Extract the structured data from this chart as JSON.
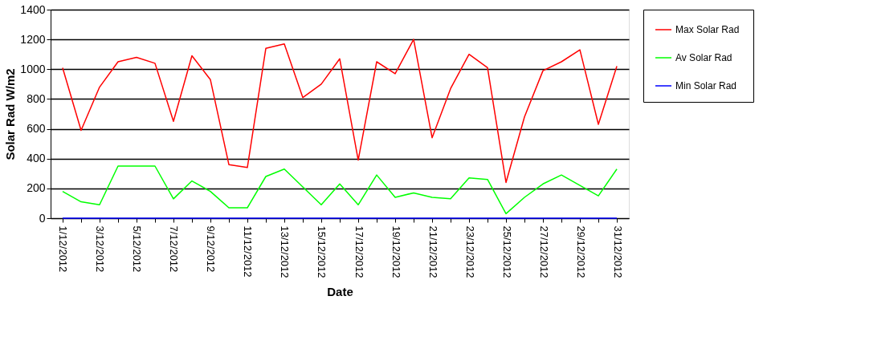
{
  "chart_data": {
    "type": "line",
    "xlabel": "Date",
    "ylabel": "Solar Rad W/m2",
    "categories": [
      "1/12/2012",
      null,
      "3/12/2012",
      null,
      "5/12/2012",
      null,
      "7/12/2012",
      null,
      "9/12/2012",
      null,
      "11/12/2012",
      null,
      "13/12/2012",
      null,
      "15/12/2012",
      null,
      "17/12/2012",
      null,
      "19/12/2012",
      null,
      "21/12/2012",
      null,
      "23/12/2012",
      null,
      "25/12/2012",
      null,
      "27/12/2012",
      null,
      "29/12/2012",
      null,
      "31/12/2012"
    ],
    "series": [
      {
        "name": "Max Solar  Rad",
        "color": "#ff0000",
        "values": [
          1010,
          590,
          880,
          1050,
          1080,
          1040,
          650,
          1090,
          930,
          360,
          340,
          1140,
          1170,
          810,
          900,
          1070,
          390,
          1050,
          970,
          1200,
          540,
          870,
          1100,
          1010,
          240,
          680,
          990,
          1050,
          1130,
          630,
          1020
        ]
      },
      {
        "name": "Av Solar  Rad",
        "color": "#00ff00",
        "values": [
          180,
          110,
          90,
          350,
          350,
          350,
          130,
          250,
          180,
          70,
          70,
          280,
          330,
          210,
          90,
          230,
          90,
          290,
          140,
          170,
          140,
          130,
          270,
          260,
          30,
          140,
          230,
          290,
          220,
          150,
          330
        ]
      },
      {
        "name": "Min Solar  Rad",
        "color": "#0000ff",
        "values": [
          0,
          0,
          0,
          0,
          0,
          0,
          0,
          0,
          0,
          0,
          0,
          0,
          0,
          0,
          0,
          0,
          0,
          0,
          0,
          0,
          0,
          0,
          0,
          0,
          0,
          0,
          0,
          0,
          0,
          0,
          0
        ]
      }
    ],
    "ylim": [
      0,
      1400
    ],
    "yticks": [
      0,
      200,
      400,
      600,
      800,
      1000,
      1200,
      1400
    ],
    "grid": "y",
    "legend": "right",
    "marker": "none",
    "line_style": "solid"
  }
}
